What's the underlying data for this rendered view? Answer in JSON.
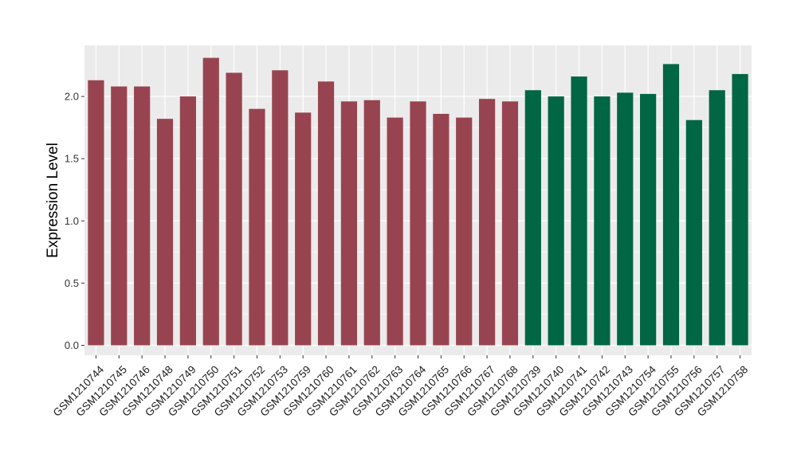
{
  "chart_data": {
    "type": "bar",
    "title": "",
    "xlabel": "",
    "ylabel": "Expression Level",
    "ylim": [
      -0.08,
      2.41
    ],
    "yticks": [
      0.0,
      0.5,
      1.0,
      1.5,
      2.0
    ],
    "ytick_labels": [
      "0.0",
      "0.5",
      "1.0",
      "1.5",
      "2.0"
    ],
    "grid": true,
    "legend": "none",
    "colors": {
      "group_a": "#984450",
      "group_b": "#006644",
      "panel": "#ebebeb",
      "gridline": "#ffffff"
    },
    "categories": [
      "GSM1210744",
      "GSM1210745",
      "GSM1210746",
      "GSM1210748",
      "GSM1210749",
      "GSM1210750",
      "GSM1210751",
      "GSM1210752",
      "GSM1210753",
      "GSM1210759",
      "GSM1210760",
      "GSM1210761",
      "GSM1210762",
      "GSM1210763",
      "GSM1210764",
      "GSM1210765",
      "GSM1210766",
      "GSM1210767",
      "GSM1210768",
      "GSM1210739",
      "GSM1210740",
      "GSM1210741",
      "GSM1210742",
      "GSM1210743",
      "GSM1210754",
      "GSM1210755",
      "GSM1210756",
      "GSM1210757",
      "GSM1210758"
    ],
    "values": [
      2.13,
      2.08,
      2.08,
      1.82,
      2.0,
      2.31,
      2.19,
      1.9,
      2.21,
      1.87,
      2.12,
      1.96,
      1.97,
      1.83,
      1.96,
      1.86,
      1.83,
      1.98,
      1.96,
      2.05,
      2.0,
      2.16,
      2.0,
      2.03,
      2.02,
      2.26,
      1.81,
      2.05,
      2.18
    ],
    "groups": [
      "a",
      "a",
      "a",
      "a",
      "a",
      "a",
      "a",
      "a",
      "a",
      "a",
      "a",
      "a",
      "a",
      "a",
      "a",
      "a",
      "a",
      "a",
      "a",
      "b",
      "b",
      "b",
      "b",
      "b",
      "b",
      "b",
      "b",
      "b",
      "b"
    ]
  }
}
